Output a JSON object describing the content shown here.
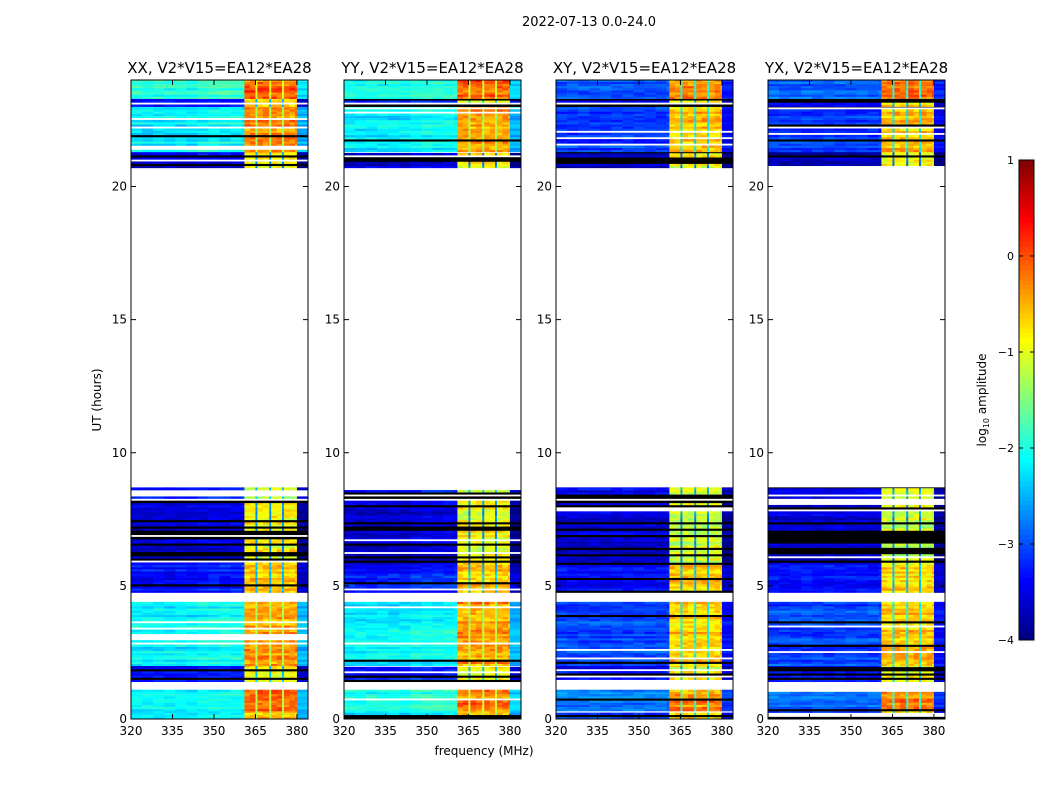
{
  "chart_data": {
    "type": "heatmap",
    "title": "2022-07-13 0.0-24.0",
    "xlabel": "frequency (MHz)",
    "ylabel": "UT (hours)",
    "xlim": [
      320,
      384
    ],
    "ylim": [
      0,
      24
    ],
    "xticks": [
      320,
      335,
      350,
      365,
      380
    ],
    "yticks": [
      0,
      5,
      10,
      15,
      20
    ],
    "colorbar": {
      "label_main": "log",
      "label_sub": "10",
      "label_rest": " amplitude",
      "colormap": "jet",
      "range": [
        -4,
        1
      ],
      "ticks": [
        1,
        0,
        -1,
        -2,
        -3,
        -4
      ],
      "tick_labels": [
        "1",
        "0",
        "−1",
        "−2",
        "−3",
        "−4"
      ]
    },
    "high_band_mhz": [
      [
        361,
        365
      ],
      [
        365.7,
        370
      ],
      [
        370.7,
        374.6
      ],
      [
        375.3,
        380
      ]
    ],
    "panels": [
      {
        "title": "XX, V2*V15=EA12*EA28",
        "kind": "parallel"
      },
      {
        "title": "YY, V2*V15=EA12*EA28",
        "kind": "parallel"
      },
      {
        "title": "XY, V2*V15=EA12*EA28",
        "kind": "cross"
      },
      {
        "title": "YX, V2*V15=EA12*EA28",
        "kind": "cross"
      }
    ],
    "time_segments": {
      "parallel": [
        {
          "t": [
            0.0,
            0.3
          ],
          "bg": -2.3,
          "band": -0.6,
          "flag": 0.5,
          "black": 0.1
        },
        {
          "t": [
            0.3,
            1.1
          ],
          "bg": -2.1,
          "band": -0.2,
          "flag": 0.15,
          "black": 0.0
        },
        {
          "t": [
            1.1,
            1.4
          ],
          "bg": null,
          "band": null,
          "flag": 1,
          "black": 0
        },
        {
          "t": [
            1.4,
            2.0
          ],
          "bg": -3.3,
          "band": -0.8,
          "flag": 0.2,
          "black": 0.25
        },
        {
          "t": [
            2.0,
            4.4
          ],
          "bg": -2.2,
          "band": -0.4,
          "flag": 0.15,
          "black": 0.03
        },
        {
          "t": [
            4.4,
            4.75
          ],
          "bg": null,
          "band": null,
          "flag": 0.6,
          "black": 0.4
        },
        {
          "t": [
            4.75,
            5.8
          ],
          "bg": -3.3,
          "band": -0.6,
          "flag": 0.08,
          "black": 0.1
        },
        {
          "t": [
            5.8,
            8.2
          ],
          "bg": -3.6,
          "band": -0.9,
          "flag": 0.12,
          "black": 0.35
        },
        {
          "t": [
            8.2,
            8.7
          ],
          "bg": -3.4,
          "band": -1.0,
          "flag": 0.55,
          "black": 0.25
        },
        {
          "t": [
            20.7,
            21.3
          ],
          "bg": -3.6,
          "band": -0.9,
          "flag": 0.15,
          "black": 0.45
        },
        {
          "t": [
            21.3,
            23.0
          ],
          "bg": -2.2,
          "band": -0.4,
          "flag": 0.25,
          "black": 0.1
        },
        {
          "t": [
            23.0,
            23.3
          ],
          "bg": -3.4,
          "band": -0.8,
          "flag": 0.2,
          "black": 0.3
        },
        {
          "t": [
            23.3,
            24.0
          ],
          "bg": -2.0,
          "band": -0.1,
          "flag": 0.0,
          "black": 0.0
        }
      ],
      "cross": [
        {
          "t": [
            0.0,
            0.3
          ],
          "bg": -3.0,
          "band": -0.6,
          "flag": 0.5,
          "black": 0.2
        },
        {
          "t": [
            0.3,
            1.1
          ],
          "bg": -2.8,
          "band": -0.3,
          "flag": 0.15,
          "black": 0.05
        },
        {
          "t": [
            1.1,
            1.4
          ],
          "bg": null,
          "band": null,
          "flag": 1,
          "black": 0
        },
        {
          "t": [
            1.4,
            2.0
          ],
          "bg": -3.4,
          "band": -0.9,
          "flag": 0.2,
          "black": 0.3
        },
        {
          "t": [
            2.0,
            4.4
          ],
          "bg": -3.0,
          "band": -0.6,
          "flag": 0.15,
          "black": 0.05
        },
        {
          "t": [
            4.4,
            4.75
          ],
          "bg": null,
          "band": null,
          "flag": 0.6,
          "black": 0.4
        },
        {
          "t": [
            4.75,
            5.8
          ],
          "bg": -3.3,
          "band": -0.7,
          "flag": 0.08,
          "black": 0.1
        },
        {
          "t": [
            5.8,
            8.2
          ],
          "bg": -3.6,
          "band": -1.1,
          "flag": 0.12,
          "black": 0.35
        },
        {
          "t": [
            8.2,
            8.7
          ],
          "bg": -3.4,
          "band": -1.1,
          "flag": 0.55,
          "black": 0.25
        },
        {
          "t": [
            20.7,
            21.3
          ],
          "bg": -3.7,
          "band": -1.0,
          "flag": 0.15,
          "black": 0.45
        },
        {
          "t": [
            21.3,
            23.0
          ],
          "bg": -3.1,
          "band": -0.6,
          "flag": 0.25,
          "black": 0.15
        },
        {
          "t": [
            23.0,
            23.3
          ],
          "bg": -3.4,
          "band": -0.8,
          "flag": 0.2,
          "black": 0.3
        },
        {
          "t": [
            23.3,
            24.0
          ],
          "bg": -2.9,
          "band": -0.2,
          "flag": 0.0,
          "black": 0.0
        }
      ]
    }
  }
}
